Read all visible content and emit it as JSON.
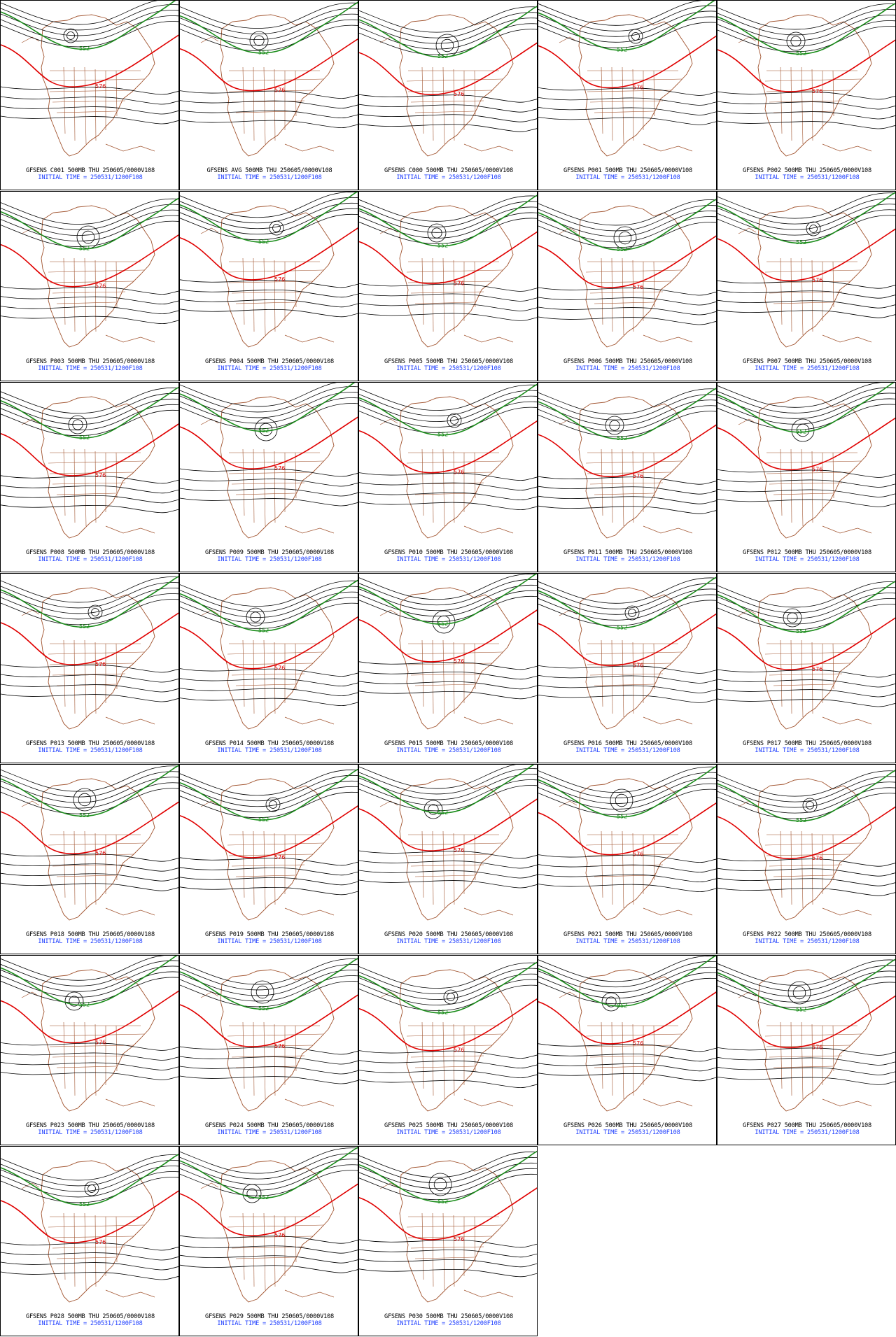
{
  "panels": [
    {
      "line1": "GFSENS C001 500MB THU 250605/0000V108",
      "line2": "INITIAL TIME = 250531/1200F108"
    },
    {
      "line1": "GFSENS AVG 500MB THU 250605/0000V108",
      "line2": "INITIAL TIME = 250531/1200F108"
    },
    {
      "line1": "GFSENS C000 500MB THU 250605/0000V108",
      "line2": "INITIAL TIME = 250531/1200F108"
    },
    {
      "line1": "GFSENS P001 500MB THU 250605/0000V108",
      "line2": "INITIAL TIME = 250531/1200F108"
    },
    {
      "line1": "GFSENS P002 500MB THU 250605/0000V108",
      "line2": "INITIAL TIME = 250531/1200F108"
    },
    {
      "line1": "GFSENS P003 500MB THU 250605/0000V108",
      "line2": "INITIAL TIME = 250531/1200F108"
    },
    {
      "line1": "GFSENS P004 500MB THU 250605/0000V108",
      "line2": "INITIAL TIME = 250531/1200F108"
    },
    {
      "line1": "GFSENS P005 500MB THU 250605/0000V108",
      "line2": "INITIAL TIME = 250531/1200F108"
    },
    {
      "line1": "GFSENS P006 500MB THU 250605/0000V108",
      "line2": "INITIAL TIME = 250531/1200F108"
    },
    {
      "line1": "GFSENS P007 500MB THU 250605/0000V108",
      "line2": "INITIAL TIME = 250531/1200F108"
    },
    {
      "line1": "GFSENS P008 500MB THU 250605/0000V108",
      "line2": "INITIAL TIME = 250531/1200F108"
    },
    {
      "line1": "GFSENS P009 500MB THU 250605/0000V108",
      "line2": "INITIAL TIME = 250531/1200F108"
    },
    {
      "line1": "GFSENS P010 500MB THU 250605/0000V108",
      "line2": "INITIAL TIME = 250531/1200F108"
    },
    {
      "line1": "GFSENS P011 500MB THU 250605/0000V108",
      "line2": "INITIAL TIME = 250531/1200F108"
    },
    {
      "line1": "GFSENS P012 500MB THU 250605/0000V108",
      "line2": "INITIAL TIME = 250531/1200F108"
    },
    {
      "line1": "GFSENS P013 500MB THU 250605/0000V108",
      "line2": "INITIAL TIME = 250531/1200F108"
    },
    {
      "line1": "GFSENS P014 500MB THU 250605/0000V108",
      "line2": "INITIAL TIME = 250531/1200F108"
    },
    {
      "line1": "GFSENS P015 500MB THU 250605/0000V108",
      "line2": "INITIAL TIME = 250531/1200F108"
    },
    {
      "line1": "GFSENS P016 500MB THU 250605/0000V108",
      "line2": "INITIAL TIME = 250531/1200F108"
    },
    {
      "line1": "GFSENS P017 500MB THU 250605/0000V108",
      "line2": "INITIAL TIME = 250531/1200F108"
    },
    {
      "line1": "GFSENS P018 500MB THU 250605/0000V108",
      "line2": "INITIAL TIME = 250531/1200F108"
    },
    {
      "line1": "GFSENS P019 500MB THU 250605/0000V108",
      "line2": "INITIAL TIME = 250531/1200F108"
    },
    {
      "line1": "GFSENS P020 500MB THU 250605/0000V108",
      "line2": "INITIAL TIME = 250531/1200F108"
    },
    {
      "line1": "GFSENS P021 500MB THU 250605/0000V108",
      "line2": "INITIAL TIME = 250531/1200F108"
    },
    {
      "line1": "GFSENS P022 500MB THU 250605/0000V108",
      "line2": "INITIAL TIME = 250531/1200F108"
    },
    {
      "line1": "GFSENS P023 500MB THU 250605/0000V108",
      "line2": "INITIAL TIME = 250531/1200F108"
    },
    {
      "line1": "GFSENS P024 500MB THU 250605/0000V108",
      "line2": "INITIAL TIME = 250531/1200F108"
    },
    {
      "line1": "GFSENS P025 500MB THU 250605/0000V108",
      "line2": "INITIAL TIME = 250531/1200F108"
    },
    {
      "line1": "GFSENS P026 500MB THU 250605/0000V108",
      "line2": "INITIAL TIME = 250531/1200F108"
    },
    {
      "line1": "GFSENS P027 500MB THU 250605/0000V108",
      "line2": "INITIAL TIME = 250531/1200F108"
    },
    {
      "line1": "GFSENS P028 500MB THU 250605/0000V108",
      "line2": "INITIAL TIME = 250531/1200F108"
    },
    {
      "line1": "GFSENS P029 500MB THU 250605/0000V108",
      "line2": "INITIAL TIME = 250531/1200F108"
    },
    {
      "line1": "GFSENS P030 500MB THU 250605/0000V108",
      "line2": "INITIAL TIME = 250531/1200F108"
    }
  ],
  "contour_labels": {
    "green": "552",
    "red": "576"
  },
  "colors": {
    "green_contour": "#1a8c1a",
    "red_contour": "#e00000",
    "height_contour": "#000000",
    "map_outline": "#a0522d",
    "caption": "#000000",
    "caption_time": "#1f3fff"
  }
}
